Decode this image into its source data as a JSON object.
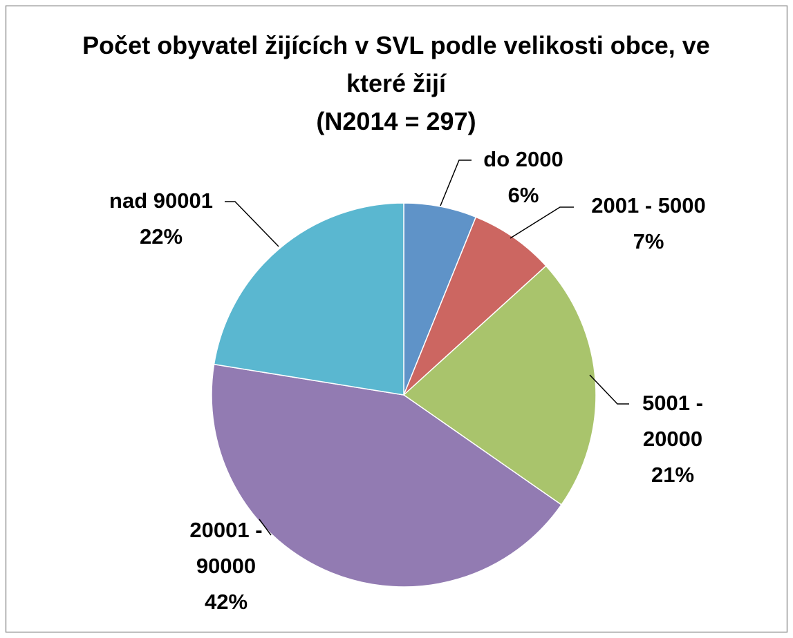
{
  "chart_data": {
    "type": "pie",
    "title": "Počet obyvatel žijících v SVL podle velikosti obce, ve které žijí",
    "subtitle": "(N2014 = 297)",
    "categories": [
      "do 2000",
      "2001 - 5000",
      "5001 - 20000",
      "20001 - 90000",
      "nad 90001"
    ],
    "values": [
      6,
      7,
      21,
      42,
      22
    ],
    "value_labels": [
      "6%",
      "7%",
      "21%",
      "42%",
      "22%"
    ],
    "colors": [
      "#5f93c8",
      "#cc6661",
      "#a9c46c",
      "#927bb2",
      "#5ab7d0"
    ]
  }
}
